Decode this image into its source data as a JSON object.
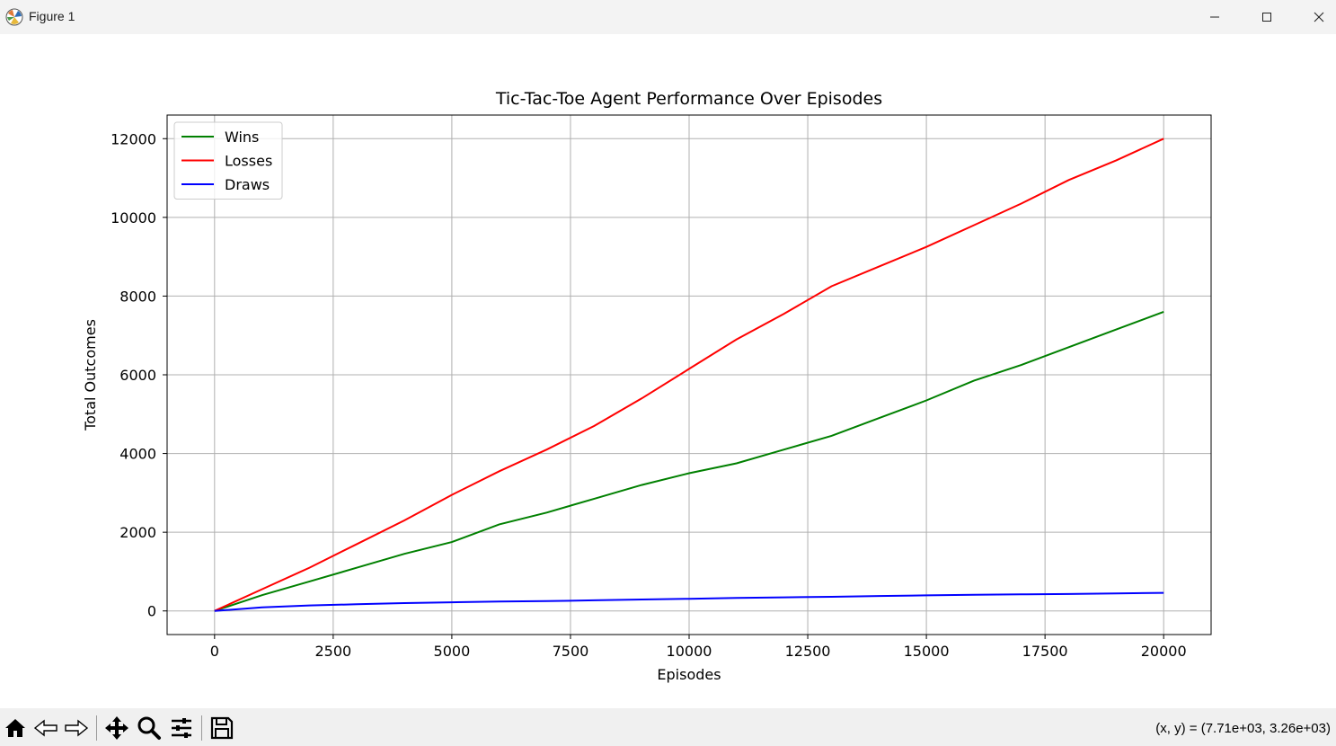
{
  "window": {
    "title": "Figure 1",
    "icons": [
      "matplotlib-icon",
      "minimize-icon",
      "maximize-icon",
      "close-icon"
    ]
  },
  "toolbar": {
    "icons": [
      "home-icon",
      "back-icon",
      "forward-icon",
      "pan-icon",
      "zoom-icon",
      "configure-subplots-icon",
      "save-icon"
    ],
    "coords": "(x, y) = (7.71e+03, 3.26e+03)"
  },
  "chart_data": {
    "type": "line",
    "title": "Tic-Tac-Toe Agent Performance Over Episodes",
    "xlabel": "Episodes",
    "ylabel": "Total Outcomes",
    "xlim": [
      -1000,
      21000
    ],
    "ylim": [
      -600,
      12600
    ],
    "xticks": [
      0,
      2500,
      5000,
      7500,
      10000,
      12500,
      15000,
      17500,
      20000
    ],
    "yticks": [
      0,
      2000,
      4000,
      6000,
      8000,
      10000,
      12000
    ],
    "grid": true,
    "legend_position": "top-left",
    "x": [
      0,
      1000,
      2000,
      3000,
      4000,
      5000,
      6000,
      7000,
      8000,
      9000,
      10000,
      11000,
      12000,
      13000,
      14000,
      15000,
      16000,
      17000,
      18000,
      19000,
      20000
    ],
    "series": [
      {
        "name": "Wins",
        "color": "#008000",
        "values": [
          0,
          400,
          750,
          1100,
          1450,
          1750,
          2200,
          2500,
          2850,
          3200,
          3500,
          3750,
          4100,
          4450,
          4900,
          5350,
          5850,
          6250,
          6700,
          7150,
          7600
        ]
      },
      {
        "name": "Losses",
        "color": "#ff0000",
        "values": [
          0,
          550,
          1100,
          1700,
          2300,
          2950,
          3550,
          4100,
          4700,
          5400,
          6150,
          6900,
          7550,
          8250,
          8750,
          9250,
          9800,
          10350,
          10950,
          11450,
          12000
        ]
      },
      {
        "name": "Draws",
        "color": "#0000ff",
        "values": [
          0,
          90,
          140,
          170,
          200,
          220,
          240,
          250,
          270,
          290,
          310,
          330,
          345,
          360,
          380,
          395,
          410,
          420,
          430,
          445,
          460
        ]
      }
    ]
  }
}
